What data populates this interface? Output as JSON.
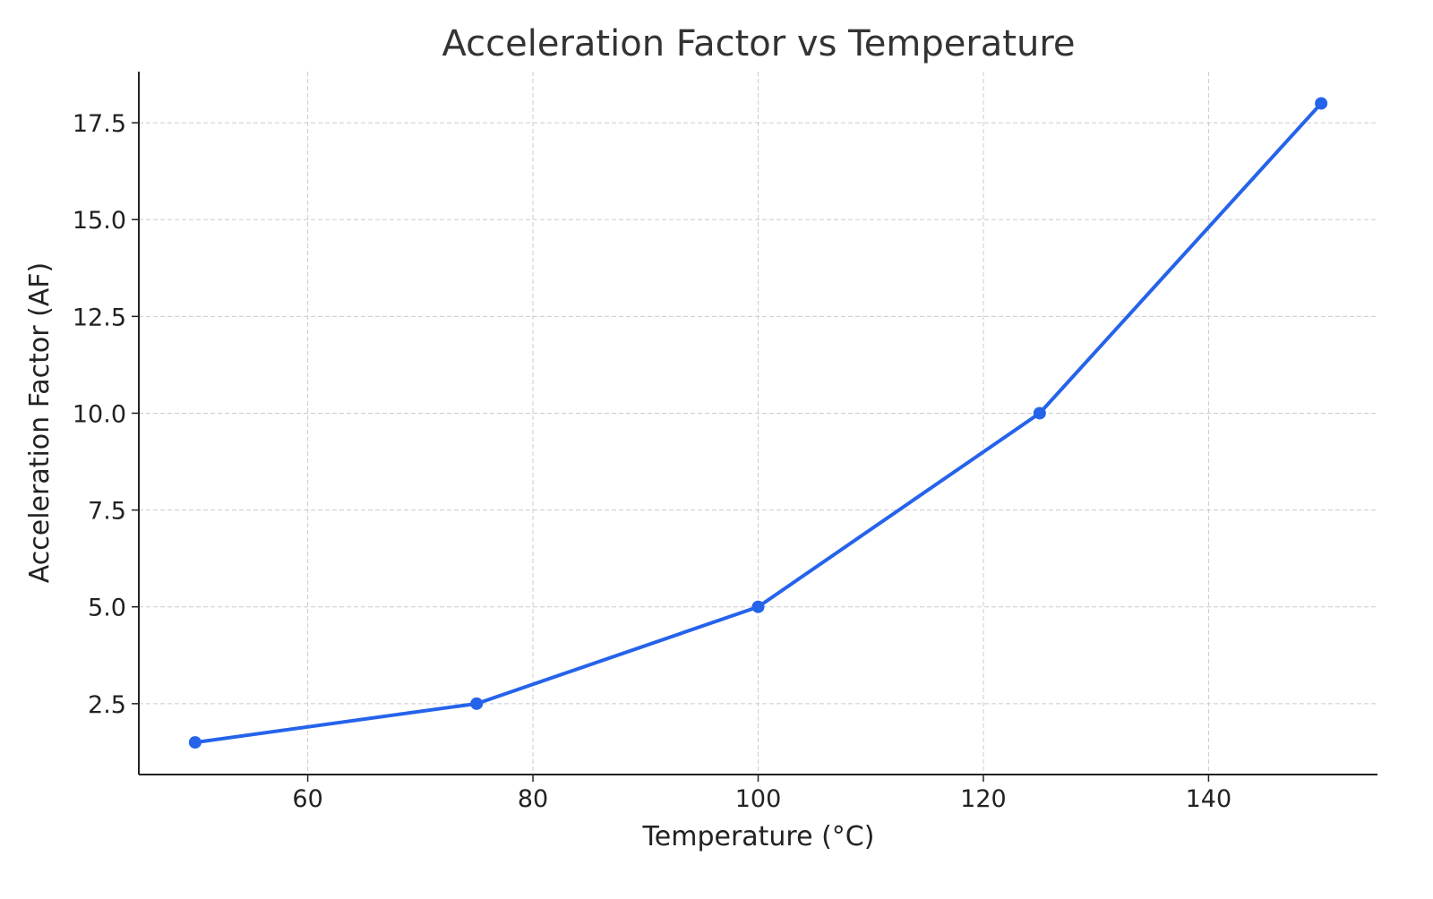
{
  "chart_data": {
    "type": "line",
    "title": "Acceleration Factor vs Temperature",
    "xlabel": "Temperature (°C)",
    "ylabel": "Acceleration Factor (AF)",
    "x": [
      50,
      75,
      100,
      125,
      150
    ],
    "series": [
      {
        "values": [
          1.5,
          2.5,
          5.0,
          10.0,
          18.0
        ],
        "color": "#2563eb",
        "marker": "circle"
      }
    ],
    "xlim": [
      45,
      155
    ],
    "ylim": [
      0.67,
      18.82
    ],
    "xticks": [
      60,
      80,
      100,
      120,
      140
    ],
    "xtick_labels": [
      "60",
      "80",
      "100",
      "120",
      "140"
    ],
    "yticks": [
      2.5,
      5.0,
      7.5,
      10.0,
      12.5,
      15.0,
      17.5
    ],
    "ytick_labels": [
      "2.5",
      "5.0",
      "7.5",
      "10.0",
      "12.5",
      "15.0",
      "17.5"
    ],
    "grid": true,
    "grid_style": "dashed"
  }
}
